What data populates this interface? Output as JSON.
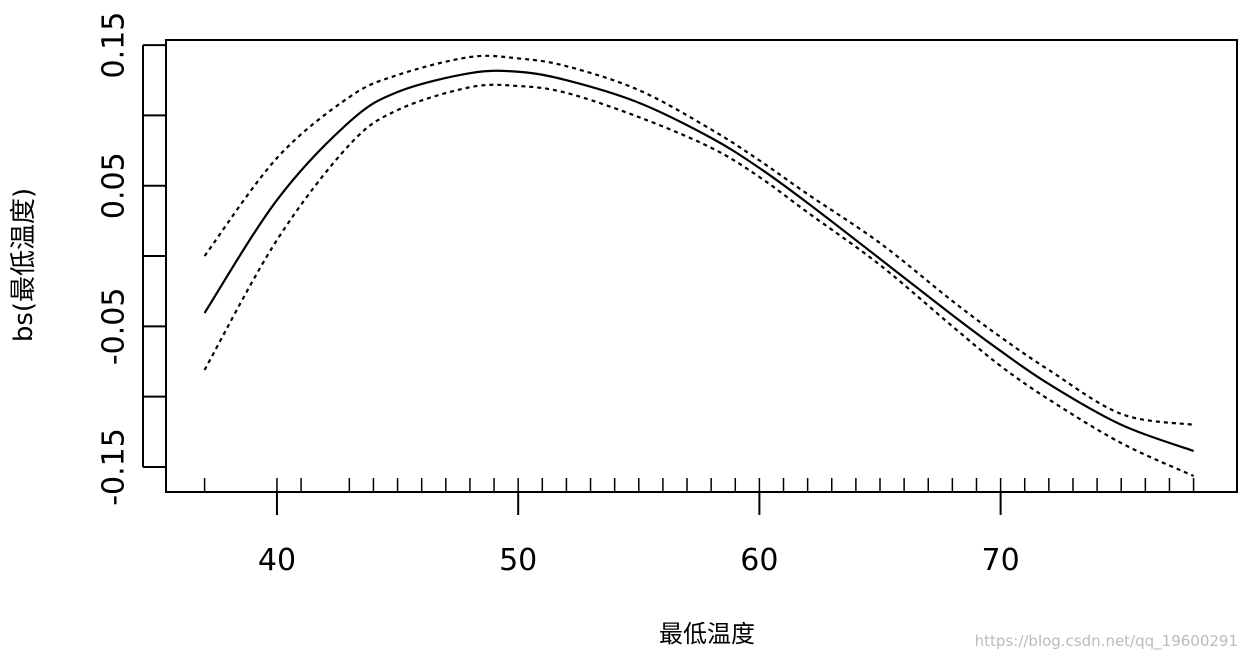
{
  "chart_data": {
    "type": "line",
    "x_label": "最低温度",
    "y_label": "bs(最低温度)",
    "watermark": "https://blog.csdn.net/qq_19600291",
    "x": [
      37,
      40,
      43,
      45,
      48,
      50,
      52,
      55,
      58,
      60,
      62,
      65,
      68,
      70,
      72,
      75,
      78
    ],
    "series": [
      {
        "color": "#000000",
        "dash": false,
        "values": [
          -0.0405,
          0.0398,
          0.0953,
          0.1166,
          0.13,
          0.131,
          0.125,
          0.109,
          0.084,
          0.0626,
          0.0377,
          -0.002,
          -0.042,
          -0.0675,
          -0.091,
          -0.12,
          -0.1386
        ]
      },
      {
        "color": "#000000",
        "dash": true,
        "values": [
          0.0,
          0.0697,
          0.113,
          0.1287,
          0.1415,
          0.1405,
          0.135,
          0.118,
          0.09,
          0.068,
          0.044,
          0.0092,
          -0.032,
          -0.0576,
          -0.081,
          -0.1123,
          -0.12
        ]
      },
      {
        "color": "#000000",
        "dash": true,
        "values": [
          -0.081,
          0.0114,
          0.079,
          0.1038,
          0.12,
          0.1209,
          0.116,
          0.0988,
          0.077,
          0.0562,
          0.031,
          -0.0064,
          -0.05,
          -0.0782,
          -0.102,
          -0.133,
          -0.1564
        ]
      }
    ],
    "rug": [
      37,
      40,
      41,
      43,
      44,
      45,
      46,
      47,
      48,
      49,
      50,
      51,
      52,
      53,
      54,
      55,
      56,
      57,
      58,
      59,
      60,
      61,
      62,
      63,
      64,
      65,
      66,
      67,
      68,
      69,
      70,
      71,
      72,
      73,
      74,
      75,
      76,
      77,
      78
    ],
    "xlim": [
      35.4,
      79.8
    ],
    "ylim": [
      -0.1678,
      0.1536
    ],
    "xticks": [
      40,
      50,
      60,
      70
    ],
    "yticks": [
      0.15,
      0.05,
      -0.05,
      -0.15
    ],
    "yminor_ticks": [
      0.1,
      0,
      -0.1
    ]
  }
}
